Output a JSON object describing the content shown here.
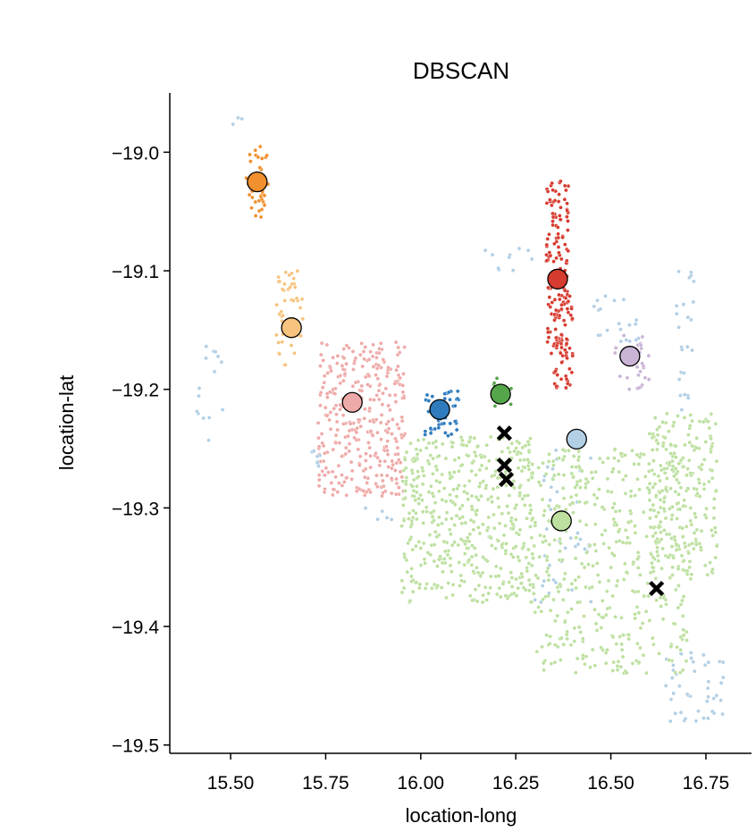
{
  "chart_data": {
    "type": "scatter",
    "title": "DBSCAN",
    "xlabel": "location-long",
    "ylabel": "location-lat",
    "xlim": [
      15.34,
      16.87
    ],
    "ylim": [
      -19.507,
      -18.95
    ],
    "xticks": [
      15.5,
      15.75,
      16.0,
      16.25,
      16.5,
      16.75
    ],
    "xtick_labels": [
      "15.50",
      "15.75",
      "16.00",
      "16.25",
      "16.50",
      "16.75"
    ],
    "yticks": [
      -19.0,
      -19.1,
      -19.2,
      -19.3,
      -19.4,
      -19.5
    ],
    "ytick_labels": [
      "−19.0",
      "−19.1",
      "−19.2",
      "−19.3",
      "−19.4",
      "−19.5"
    ],
    "legend": "none",
    "clusters": [
      {
        "name": "cluster-orange",
        "color": "#f0902e",
        "center": [
          15.57,
          -19.025
        ],
        "regions": [
          {
            "x": [
              15.54,
              15.6
            ],
            "y": [
              -19.055,
              -18.995
            ],
            "n": 40
          }
        ]
      },
      {
        "name": "cluster-light-orange",
        "color": "#f7c37f",
        "center": [
          15.66,
          -19.148
        ],
        "regions": [
          {
            "x": [
              15.62,
              15.69
            ],
            "y": [
              -19.18,
              -19.1
            ],
            "n": 50
          }
        ]
      },
      {
        "name": "cluster-pink",
        "color": "#eeaaa8",
        "center": [
          15.82,
          -19.211
        ],
        "regions": [
          {
            "x": [
              15.73,
              15.96
            ],
            "y": [
              -19.29,
              -19.16
            ],
            "n": 330
          }
        ]
      },
      {
        "name": "cluster-blue",
        "color": "#2f7bbd",
        "center": [
          16.05,
          -19.217
        ],
        "regions": [
          {
            "x": [
              16.01,
              16.1
            ],
            "y": [
              -19.24,
              -19.2
            ],
            "n": 45
          }
        ]
      },
      {
        "name": "cluster-green",
        "color": "#55a64a",
        "center": [
          16.21,
          -19.204
        ],
        "regions": [
          {
            "x": [
              16.19,
              16.24
            ],
            "y": [
              -19.215,
              -19.19
            ],
            "n": 12
          }
        ]
      },
      {
        "name": "cluster-red",
        "color": "#d63b2f",
        "center": [
          16.36,
          -19.107
        ],
        "regions": [
          {
            "x": [
              16.33,
              16.39
            ],
            "y": [
              -19.17,
              -19.02
            ],
            "n": 140
          },
          {
            "x": [
              16.35,
              16.4
            ],
            "y": [
              -19.2,
              -19.12
            ],
            "n": 60
          }
        ]
      },
      {
        "name": "cluster-lavender",
        "color": "#c9b4d6",
        "center": [
          16.55,
          -19.172
        ],
        "regions": [
          {
            "x": [
              16.5,
              16.6
            ],
            "y": [
              -19.2,
              -19.15
            ],
            "n": 30
          }
        ]
      },
      {
        "name": "cluster-light-blue",
        "color": "#b2cfe5",
        "center": [
          16.41,
          -19.242
        ],
        "regions": [
          {
            "x": [
              15.41,
              15.48
            ],
            "y": [
              -19.25,
              -19.15
            ],
            "n": 15
          },
          {
            "x": [
              15.47,
              15.53
            ],
            "y": [
              -18.98,
              -18.97
            ],
            "n": 3
          },
          {
            "x": [
              15.7,
              15.75
            ],
            "y": [
              -19.27,
              -19.25
            ],
            "n": 8
          },
          {
            "x": [
              16.3,
              16.45
            ],
            "y": [
              -19.38,
              -19.24
            ],
            "n": 40
          },
          {
            "x": [
              16.45,
              16.58
            ],
            "y": [
              -19.16,
              -19.12
            ],
            "n": 20
          },
          {
            "x": [
              16.67,
              16.72
            ],
            "y": [
              -19.22,
              -19.1
            ],
            "n": 25
          },
          {
            "x": [
              16.64,
              16.8
            ],
            "y": [
              -19.48,
              -19.42
            ],
            "n": 45
          },
          {
            "x": [
              16.15,
              16.3
            ],
            "y": [
              -19.1,
              -19.08
            ],
            "n": 10
          },
          {
            "x": [
              15.85,
              15.95
            ],
            "y": [
              -19.31,
              -19.3
            ],
            "n": 5
          }
        ]
      },
      {
        "name": "cluster-light-green",
        "color": "#bde0a0",
        "center": [
          16.37,
          -19.311
        ],
        "regions": [
          {
            "x": [
              15.95,
              16.3
            ],
            "y": [
              -19.38,
              -19.24
            ],
            "n": 480
          },
          {
            "x": [
              16.3,
              16.7
            ],
            "y": [
              -19.44,
              -19.25
            ],
            "n": 420
          },
          {
            "x": [
              16.6,
              16.78
            ],
            "y": [
              -19.36,
              -19.22
            ],
            "n": 230
          }
        ]
      }
    ],
    "noise_markers": [
      [
        16.22,
        -19.237
      ],
      [
        16.22,
        -19.264
      ],
      [
        16.225,
        -19.276
      ],
      [
        16.62,
        -19.368
      ]
    ]
  }
}
